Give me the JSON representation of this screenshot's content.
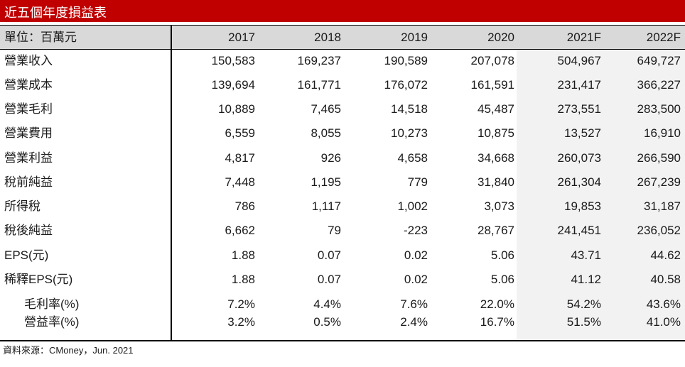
{
  "title": "近五個年度損益表",
  "header": {
    "unit_label": "單位：百萬元",
    "columns": [
      "2017",
      "2018",
      "2019",
      "2020",
      "2021F",
      "2022F"
    ]
  },
  "rows": [
    {
      "label": "營業收入",
      "values": [
        "150,583",
        "169,237",
        "190,589",
        "207,078",
        "504,967",
        "649,727"
      ]
    },
    {
      "label": "營業成本",
      "values": [
        "139,694",
        "161,771",
        "176,072",
        "161,591",
        "231,417",
        "366,227"
      ]
    },
    {
      "label": "營業毛利",
      "values": [
        "10,889",
        "7,465",
        "14,518",
        "45,487",
        "273,551",
        "283,500"
      ]
    },
    {
      "label": "營業費用",
      "values": [
        "6,559",
        "8,055",
        "10,273",
        "10,875",
        "13,527",
        "16,910"
      ]
    },
    {
      "label": "營業利益",
      "values": [
        "4,817",
        "926",
        "4,658",
        "34,668",
        "260,073",
        "266,590"
      ]
    },
    {
      "label": "稅前純益",
      "values": [
        "7,448",
        "1,195",
        "779",
        "31,840",
        "261,304",
        "267,239"
      ]
    },
    {
      "label": "所得稅",
      "values": [
        "786",
        "1,117",
        "1,002",
        "3,073",
        "19,853",
        "31,187"
      ]
    },
    {
      "label": "稅後純益",
      "values": [
        "6,662",
        "79",
        "-223",
        "28,767",
        "241,451",
        "236,052"
      ]
    },
    {
      "label": "EPS(元)",
      "values": [
        "1.88",
        "0.07",
        "0.02",
        "5.06",
        "43.71",
        "44.62"
      ]
    },
    {
      "label": "稀釋EPS(元)",
      "values": [
        "1.88",
        "0.07",
        "0.02",
        "5.06",
        "41.12",
        "40.58"
      ]
    },
    {
      "label": "毛利率(%)",
      "values": [
        "7.2%",
        "4.4%",
        "7.6%",
        "22.0%",
        "54.2%",
        "43.6%"
      ],
      "indent": true
    },
    {
      "label": "營益率(%)",
      "values": [
        "3.2%",
        "0.5%",
        "2.4%",
        "16.7%",
        "51.5%",
        "41.0%"
      ],
      "indent": true
    }
  ],
  "source": "資料來源：CMoney，Jun. 2021",
  "colors": {
    "title_bg": "#c00000",
    "header_bg": "#d9d9d9",
    "forecast_bg": "#f2f2f2"
  }
}
